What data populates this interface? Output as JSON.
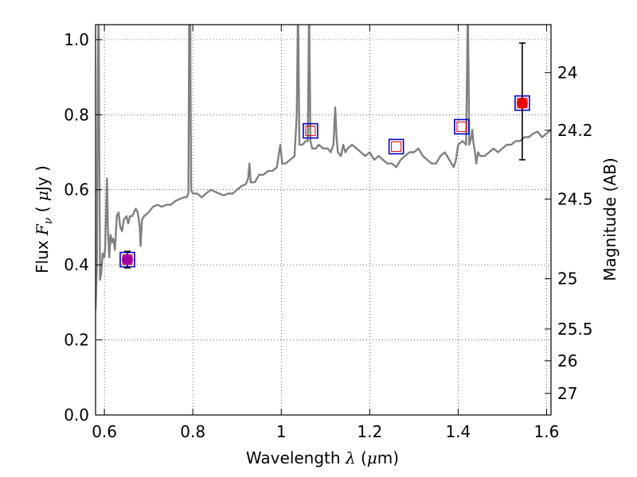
{
  "chart_data": {
    "type": "line",
    "xlabel": {
      "pre": "Wavelength  ",
      "lambda": "λ",
      "mid": " (",
      "mu": "μ",
      "post": "m)"
    },
    "ylabel": {
      "pre": "Flux  ",
      "F": "F",
      "sub": "ν",
      "mid": "  ( ",
      "mu": "μ",
      "post": "Jy )"
    },
    "y2label": "Magnitude (AB)",
    "xlim": [
      0.58,
      1.61
    ],
    "ylim": [
      0.0,
      1.04
    ],
    "grid": true,
    "x_ticks": [
      {
        "v": 0.6,
        "label": "0.6"
      },
      {
        "v": 0.8,
        "label": "0.8"
      },
      {
        "v": 1.0,
        "label": "1"
      },
      {
        "v": 1.2,
        "label": "1.2"
      },
      {
        "v": 1.4,
        "label": "1.4"
      },
      {
        "v": 1.6,
        "label": "1.6"
      }
    ],
    "y_ticks": [
      {
        "v": 0.0,
        "label": "0.0"
      },
      {
        "v": 0.2,
        "label": "0.2"
      },
      {
        "v": 0.4,
        "label": "0.4"
      },
      {
        "v": 0.6,
        "label": "0.6"
      },
      {
        "v": 0.8,
        "label": "0.8"
      },
      {
        "v": 1.0,
        "label": "1.0"
      }
    ],
    "mag_ticks": [
      {
        "v": 24,
        "label": "24"
      },
      {
        "v": 24.2,
        "label": "24.2"
      },
      {
        "v": 24.5,
        "label": "24.5"
      },
      {
        "v": 25,
        "label": "25"
      },
      {
        "v": 25.5,
        "label": "25.5"
      },
      {
        "v": 26,
        "label": "26"
      },
      {
        "v": 27,
        "label": "27"
      }
    ],
    "model_spectrum": {
      "color": "#808080",
      "points": [
        [
          0.58,
          0.28
        ],
        [
          0.583,
          0.4
        ],
        [
          0.585,
          0.9
        ],
        [
          0.587,
          1.1
        ],
        [
          0.589,
          0.6
        ],
        [
          0.59,
          0.36
        ],
        [
          0.593,
          0.38
        ],
        [
          0.596,
          0.43
        ],
        [
          0.6,
          0.42
        ],
        [
          0.602,
          0.45
        ],
        [
          0.604,
          0.55
        ],
        [
          0.606,
          0.63
        ],
        [
          0.608,
          0.5
        ],
        [
          0.611,
          0.42
        ],
        [
          0.614,
          0.48
        ],
        [
          0.617,
          0.46
        ],
        [
          0.62,
          0.47
        ],
        [
          0.624,
          0.44
        ],
        [
          0.628,
          0.53
        ],
        [
          0.632,
          0.54
        ],
        [
          0.636,
          0.5
        ],
        [
          0.64,
          0.49
        ],
        [
          0.644,
          0.52
        ],
        [
          0.65,
          0.53
        ],
        [
          0.654,
          0.51
        ],
        [
          0.658,
          0.53
        ],
        [
          0.663,
          0.53
        ],
        [
          0.667,
          0.54
        ],
        [
          0.671,
          0.55
        ],
        [
          0.675,
          0.54
        ],
        [
          0.678,
          0.52
        ],
        [
          0.68,
          0.5
        ],
        [
          0.682,
          0.45
        ],
        [
          0.685,
          0.52
        ],
        [
          0.69,
          0.53
        ],
        [
          0.7,
          0.54
        ],
        [
          0.71,
          0.555
        ],
        [
          0.72,
          0.56
        ],
        [
          0.73,
          0.555
        ],
        [
          0.74,
          0.56
        ],
        [
          0.75,
          0.56
        ],
        [
          0.76,
          0.57
        ],
        [
          0.77,
          0.575
        ],
        [
          0.78,
          0.58
        ],
        [
          0.786,
          0.58
        ],
        [
          0.79,
          0.59
        ],
        [
          0.792,
          1.1
        ],
        [
          0.794,
          1.1
        ],
        [
          0.796,
          0.6
        ],
        [
          0.8,
          0.59
        ],
        [
          0.81,
          0.59
        ],
        [
          0.82,
          0.58
        ],
        [
          0.83,
          0.59
        ],
        [
          0.84,
          0.6
        ],
        [
          0.85,
          0.595
        ],
        [
          0.86,
          0.59
        ],
        [
          0.87,
          0.585
        ],
        [
          0.88,
          0.59
        ],
        [
          0.89,
          0.59
        ],
        [
          0.9,
          0.6
        ],
        [
          0.91,
          0.61
        ],
        [
          0.92,
          0.615
        ],
        [
          0.925,
          0.63
        ],
        [
          0.928,
          0.67
        ],
        [
          0.931,
          0.62
        ],
        [
          0.94,
          0.62
        ],
        [
          0.95,
          0.64
        ],
        [
          0.96,
          0.64
        ],
        [
          0.97,
          0.65
        ],
        [
          0.98,
          0.65
        ],
        [
          0.99,
          0.66
        ],
        [
          0.995,
          0.7
        ],
        [
          0.998,
          0.72
        ],
        [
          1.002,
          0.67
        ],
        [
          1.01,
          0.67
        ],
        [
          1.02,
          0.68
        ],
        [
          1.03,
          0.69
        ],
        [
          1.035,
          0.8
        ],
        [
          1.038,
          1.1
        ],
        [
          1.041,
          0.72
        ],
        [
          1.048,
          0.72
        ],
        [
          1.055,
          0.73
        ],
        [
          1.06,
          0.73
        ],
        [
          1.063,
          1.1
        ],
        [
          1.066,
          0.73
        ],
        [
          1.07,
          0.71
        ],
        [
          1.078,
          0.71
        ],
        [
          1.085,
          0.72
        ],
        [
          1.095,
          0.71
        ],
        [
          1.105,
          0.71
        ],
        [
          1.112,
          0.7
        ],
        [
          1.118,
          0.72
        ],
        [
          1.122,
          0.82
        ],
        [
          1.125,
          0.74
        ],
        [
          1.128,
          0.7
        ],
        [
          1.135,
          0.69
        ],
        [
          1.14,
          0.72
        ],
        [
          1.145,
          0.7
        ],
        [
          1.15,
          0.71
        ],
        [
          1.16,
          0.72
        ],
        [
          1.17,
          0.71
        ],
        [
          1.18,
          0.7
        ],
        [
          1.19,
          0.69
        ],
        [
          1.2,
          0.7
        ],
        [
          1.21,
          0.68
        ],
        [
          1.22,
          0.69
        ],
        [
          1.23,
          0.68
        ],
        [
          1.24,
          0.67
        ],
        [
          1.25,
          0.67
        ],
        [
          1.26,
          0.66
        ],
        [
          1.27,
          0.68
        ],
        [
          1.28,
          0.69
        ],
        [
          1.29,
          0.7
        ],
        [
          1.3,
          0.7
        ],
        [
          1.31,
          0.71
        ],
        [
          1.32,
          0.69
        ],
        [
          1.33,
          0.68
        ],
        [
          1.34,
          0.67
        ],
        [
          1.35,
          0.67
        ],
        [
          1.36,
          0.69
        ],
        [
          1.37,
          0.7
        ],
        [
          1.38,
          0.68
        ],
        [
          1.39,
          0.66
        ],
        [
          1.395,
          0.68
        ],
        [
          1.4,
          0.72
        ],
        [
          1.41,
          0.73
        ],
        [
          1.418,
          0.72
        ],
        [
          1.422,
          1.1
        ],
        [
          1.425,
          0.72
        ],
        [
          1.43,
          0.74
        ],
        [
          1.432,
          0.76
        ],
        [
          1.434,
          0.73
        ],
        [
          1.438,
          0.7
        ],
        [
          1.441,
          0.67
        ],
        [
          1.445,
          0.7
        ],
        [
          1.45,
          0.69
        ],
        [
          1.46,
          0.69
        ],
        [
          1.47,
          0.7
        ],
        [
          1.48,
          0.71
        ],
        [
          1.49,
          0.7
        ],
        [
          1.5,
          0.71
        ],
        [
          1.51,
          0.72
        ],
        [
          1.52,
          0.72
        ],
        [
          1.53,
          0.73
        ],
        [
          1.54,
          0.73
        ],
        [
          1.55,
          0.74
        ],
        [
          1.56,
          0.74
        ],
        [
          1.57,
          0.75
        ],
        [
          1.58,
          0.755
        ],
        [
          1.59,
          0.74
        ],
        [
          1.6,
          0.75
        ],
        [
          1.61,
          0.76
        ]
      ]
    },
    "model_photometry": {
      "marker": "open square",
      "color": "#dd0000",
      "points": [
        [
          0.652,
          0.414
        ],
        [
          1.066,
          0.757
        ],
        [
          1.26,
          0.715
        ],
        [
          1.408,
          0.768
        ],
        [
          1.545,
          0.831
        ]
      ]
    },
    "bandpass_boxes": {
      "marker": "open square",
      "color": "#0000cc",
      "points": [
        [
          0.652,
          0.414
        ],
        [
          1.066,
          0.757
        ],
        [
          1.26,
          0.715
        ],
        [
          1.408,
          0.768
        ],
        [
          1.545,
          0.831
        ]
      ]
    },
    "observed": {
      "color": "#ee0000",
      "points": [
        {
          "x": 0.652,
          "y": 0.414,
          "yerr": 0.022,
          "fill": "#a000a0"
        },
        {
          "x": 1.545,
          "y": 0.831,
          "yerr_low": 0.151,
          "yerr_high": 0.16,
          "fill": "#ee0000"
        }
      ]
    }
  }
}
